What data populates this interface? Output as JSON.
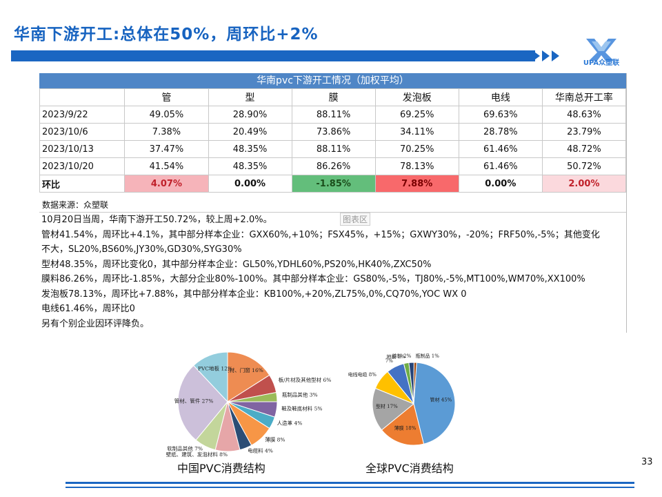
{
  "header": {
    "title": "华南下游开工:总体在50%，周环比+2%",
    "logo_text": "UPA众塑联"
  },
  "table": {
    "title": "华南pvc下游开工情况（加权平均）",
    "columns": [
      "管",
      "型",
      "膜",
      "发泡板",
      "电线",
      "华南总开工率"
    ],
    "rows": [
      {
        "date": "2023/9/22",
        "values": [
          "49.05%",
          "28.90%",
          "88.11%",
          "69.25%",
          "69.63%",
          "48.63%"
        ]
      },
      {
        "date": "2023/10/6",
        "values": [
          "7.38%",
          "20.49%",
          "73.86%",
          "34.11%",
          "28.78%",
          "23.79%"
        ]
      },
      {
        "date": "2023/10/13",
        "values": [
          "37.47%",
          "48.35%",
          "88.11%",
          "70.25%",
          "61.46%",
          "48.72%"
        ]
      },
      {
        "date": "2023/10/20",
        "values": [
          "41.54%",
          "48.35%",
          "86.26%",
          "78.13%",
          "61.46%",
          "50.72%"
        ]
      }
    ],
    "change_row": {
      "label": "环比",
      "values": [
        "4.07%",
        "0.00%",
        "-1.85%",
        "7.88%",
        "0.00%",
        "2.00%"
      ]
    },
    "source": "数据来源：众塑联",
    "watermark": "图表区",
    "notes": [
      "10月20日当周，华南下游开工50.72%，较上周+2.0%。",
      "管材41.54%，周环比+4.1%，其中部分样本企业：GXX60%,+10%；FSX45%，+15%；GXWY30%，-20%；FRF50%,-5%；其他变化",
      "不大，SL20%,BS60%,JY30%,GD30%,SYG30%",
      "型材48.35%，周环比变化0，其中部分样本企业：GL50%,YDHL60%,PS20%,HK40%,ZXC50%",
      "膜料86.26%，周环比-1.85%，大部分企业80%-100%。其中部分样本企业：GS80%,-5%，TJ80%,-5%,MT100%,WM70%,XX100%",
      "发泡板78.13%，周环比+7.88%，其中部分样本企业：KB100%,+20%,ZL75%,0%,CQ70%,YOC WX 0",
      "电线61.46%，周环比0",
      "另有个别企业因环评降负。"
    ]
  },
  "chart_data": [
    {
      "type": "pie",
      "title": "中国PVC消费结构",
      "slices": [
        {
          "label": "型材、门窗",
          "value": 16,
          "pct": "16%",
          "color": "#ee8c52"
        },
        {
          "label": "板/片材及其他型材",
          "value": 6,
          "pct": "6%",
          "color": "#c0504d"
        },
        {
          "label": "瓶制品其他",
          "value": 3,
          "pct": "3%",
          "color": "#9bbb59"
        },
        {
          "label": "鞋及鞋底材料",
          "value": 5,
          "pct": "5%",
          "color": "#8064a2"
        },
        {
          "label": "人造革",
          "value": 4,
          "pct": "4%",
          "color": "#4bacc6"
        },
        {
          "label": "薄膜",
          "value": 8,
          "pct": "8%",
          "color": "#f79646"
        },
        {
          "label": "电缆料",
          "value": 4,
          "pct": "4%",
          "color": "#2c4d75"
        },
        {
          "label": "壁纸、建筑、发泡材料",
          "value": 8,
          "pct": "8%",
          "color": "#e6a6a8"
        },
        {
          "label": "软制品其他",
          "value": 7,
          "pct": "7%",
          "color": "#c3d69b"
        },
        {
          "label": "管材、管件",
          "value": 27,
          "pct": "27%",
          "color": "#ccc0da"
        },
        {
          "label": "PVC地板",
          "value": 12,
          "pct": "12%",
          "color": "#93cddd"
        }
      ]
    },
    {
      "type": "pie",
      "title": "全球PVC消费结构",
      "slices": [
        {
          "label": "管材",
          "value": 45,
          "pct": "45%",
          "color": "#5b9bd5"
        },
        {
          "label": "薄膜",
          "value": 18,
          "pct": "18%",
          "color": "#ed7d31"
        },
        {
          "label": "型材",
          "value": 17,
          "pct": "17%",
          "color": "#a5a5a5"
        },
        {
          "label": "电线电缆",
          "value": 8,
          "pct": "8%",
          "color": "#ffc000"
        },
        {
          "label": "",
          "value": 7,
          "pct": "7%",
          "color": "#4472c4"
        },
        {
          "label": "地板",
          "value": 2,
          "pct": "2%",
          "color": "#70ad47"
        },
        {
          "label": "涂料",
          "value": 2,
          "pct": "2%",
          "color": "#264478"
        },
        {
          "label": "瓶制品",
          "value": 1,
          "pct": "1%",
          "color": "#9e480e"
        }
      ]
    }
  ],
  "page_number": "33"
}
